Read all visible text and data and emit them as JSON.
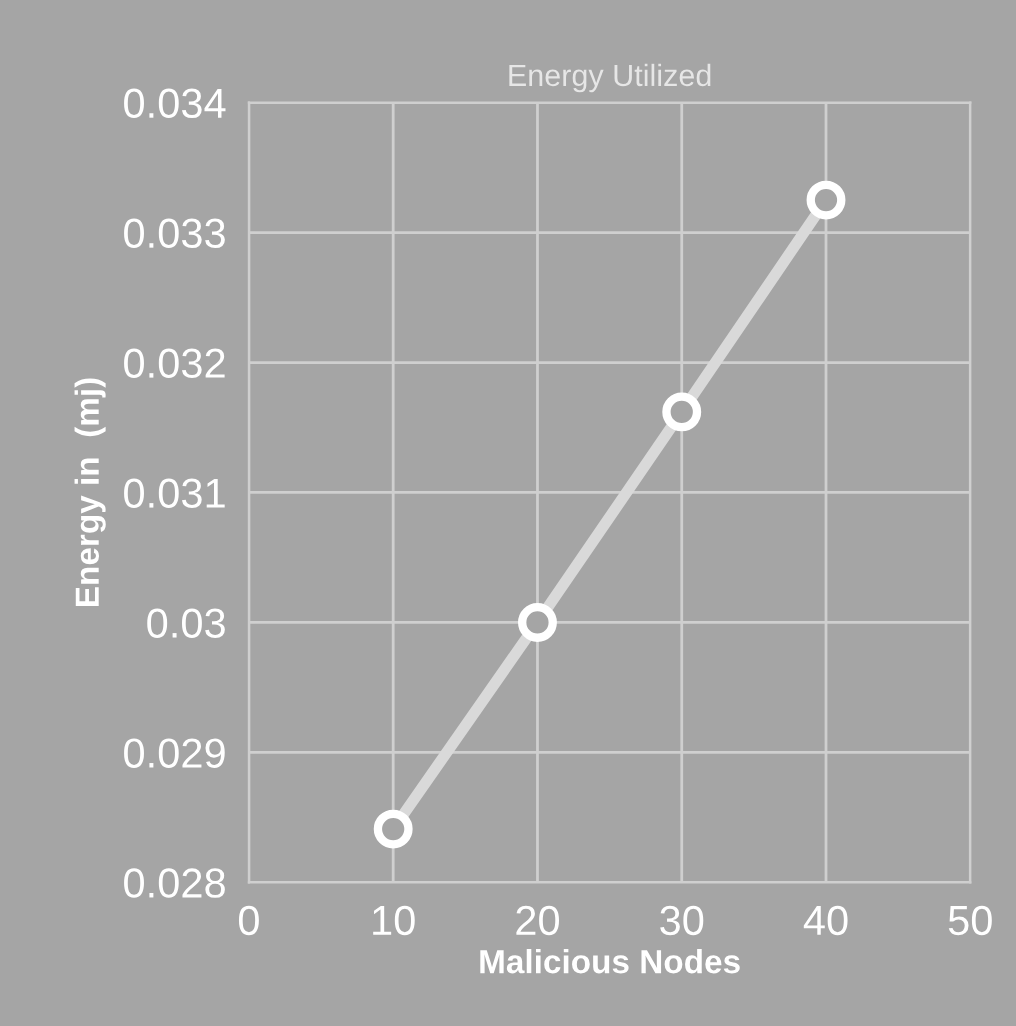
{
  "chart_data": {
    "type": "line",
    "title": "Energy Utilized",
    "xlabel": "Malicious Nodes",
    "ylabel": "Energy in  (mj)",
    "x": [
      10,
      20,
      30,
      40
    ],
    "series": [
      {
        "color": "#d9d9d9",
        "values": [
          0.02841,
          0.03,
          0.03162,
          0.03325
        ]
      }
    ],
    "xlim": [
      0,
      50
    ],
    "xticks": [
      0,
      10,
      20,
      30,
      40,
      50
    ],
    "ylim": [
      0.028,
      0.034
    ],
    "yticks": [
      0.028,
      0.029,
      0.03,
      0.031,
      0.032,
      0.033,
      0.034
    ],
    "grid": true,
    "marker": "circle",
    "line_style": "solid",
    "legend": false
  }
}
